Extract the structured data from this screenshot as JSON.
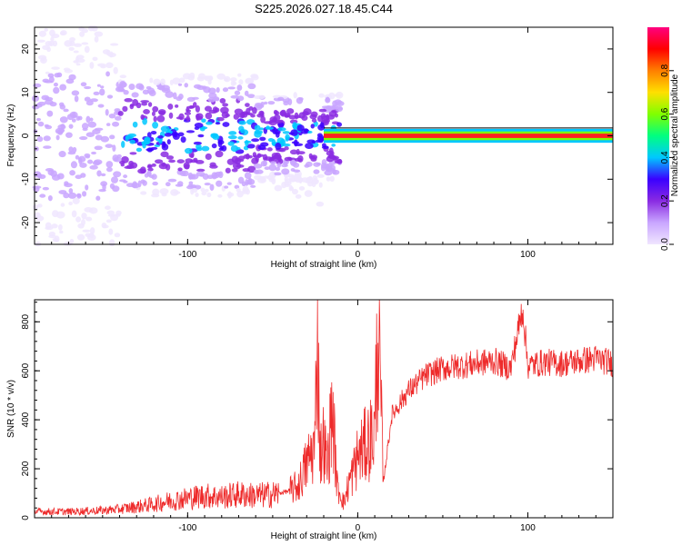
{
  "title": "S225.2026.027.18.45.C44",
  "chart_data": [
    {
      "type": "heatmap",
      "name": "spectrogram",
      "xlabel": "Height of straight line (km)",
      "ylabel": "Frequency (Hz)",
      "xlim": [
        -190,
        150
      ],
      "ylim": [
        -25,
        25
      ],
      "xticks": [
        -100,
        0,
        100
      ],
      "yticks": [
        -20,
        -10,
        0,
        10,
        20
      ],
      "colorbar": {
        "label": "Normalized spectral amplitude",
        "range": [
          0,
          1
        ],
        "ticks": [
          "0.0",
          "0.2",
          "0.4",
          "0.6",
          "0.8"
        ],
        "colors": [
          "#f0e6ff",
          "#c9a6ff",
          "#8a2be2",
          "#3a00ff",
          "#00c8ff",
          "#00ff80",
          "#80ff00",
          "#ffe000",
          "#ff7f00",
          "#ff0000",
          "#ff0080"
        ]
      },
      "features": {
        "steady_line_frequency_hz": 0,
        "steady_line_start_km": -20,
        "steady_line_end_km": 150
      }
    },
    {
      "type": "line",
      "name": "snr",
      "xlabel": "Height of straight line (km)",
      "ylabel": "SNR (10 * v/v)",
      "xlim": [
        -190,
        150
      ],
      "ylim": [
        0,
        890
      ],
      "xticks": [
        -100,
        0,
        100
      ],
      "yticks": [
        0,
        200,
        400,
        600,
        800
      ],
      "color": "#ee2b2b",
      "series": [
        {
          "name": "SNR",
          "x": [
            -190,
            -170,
            -150,
            -140,
            -130,
            -120,
            -110,
            -100,
            -90,
            -80,
            -70,
            -60,
            -50,
            -40,
            -35,
            -30,
            -25,
            -24,
            -22,
            -20,
            -18,
            -15,
            -12,
            -10,
            -8,
            -5,
            -3,
            0,
            5,
            10,
            12,
            15,
            20,
            25,
            30,
            40,
            50,
            60,
            70,
            80,
            90,
            97,
            100,
            110,
            120,
            130,
            140,
            150
          ],
          "y": [
            25,
            25,
            30,
            35,
            45,
            55,
            70,
            80,
            90,
            85,
            95,
            90,
            95,
            110,
            130,
            220,
            300,
            840,
            250,
            320,
            200,
            450,
            120,
            100,
            60,
            150,
            180,
            250,
            300,
            350,
            820,
            140,
            420,
            470,
            520,
            580,
            610,
            620,
            630,
            640,
            610,
            860,
            620,
            635,
            630,
            640,
            650,
            630
          ]
        }
      ]
    }
  ]
}
